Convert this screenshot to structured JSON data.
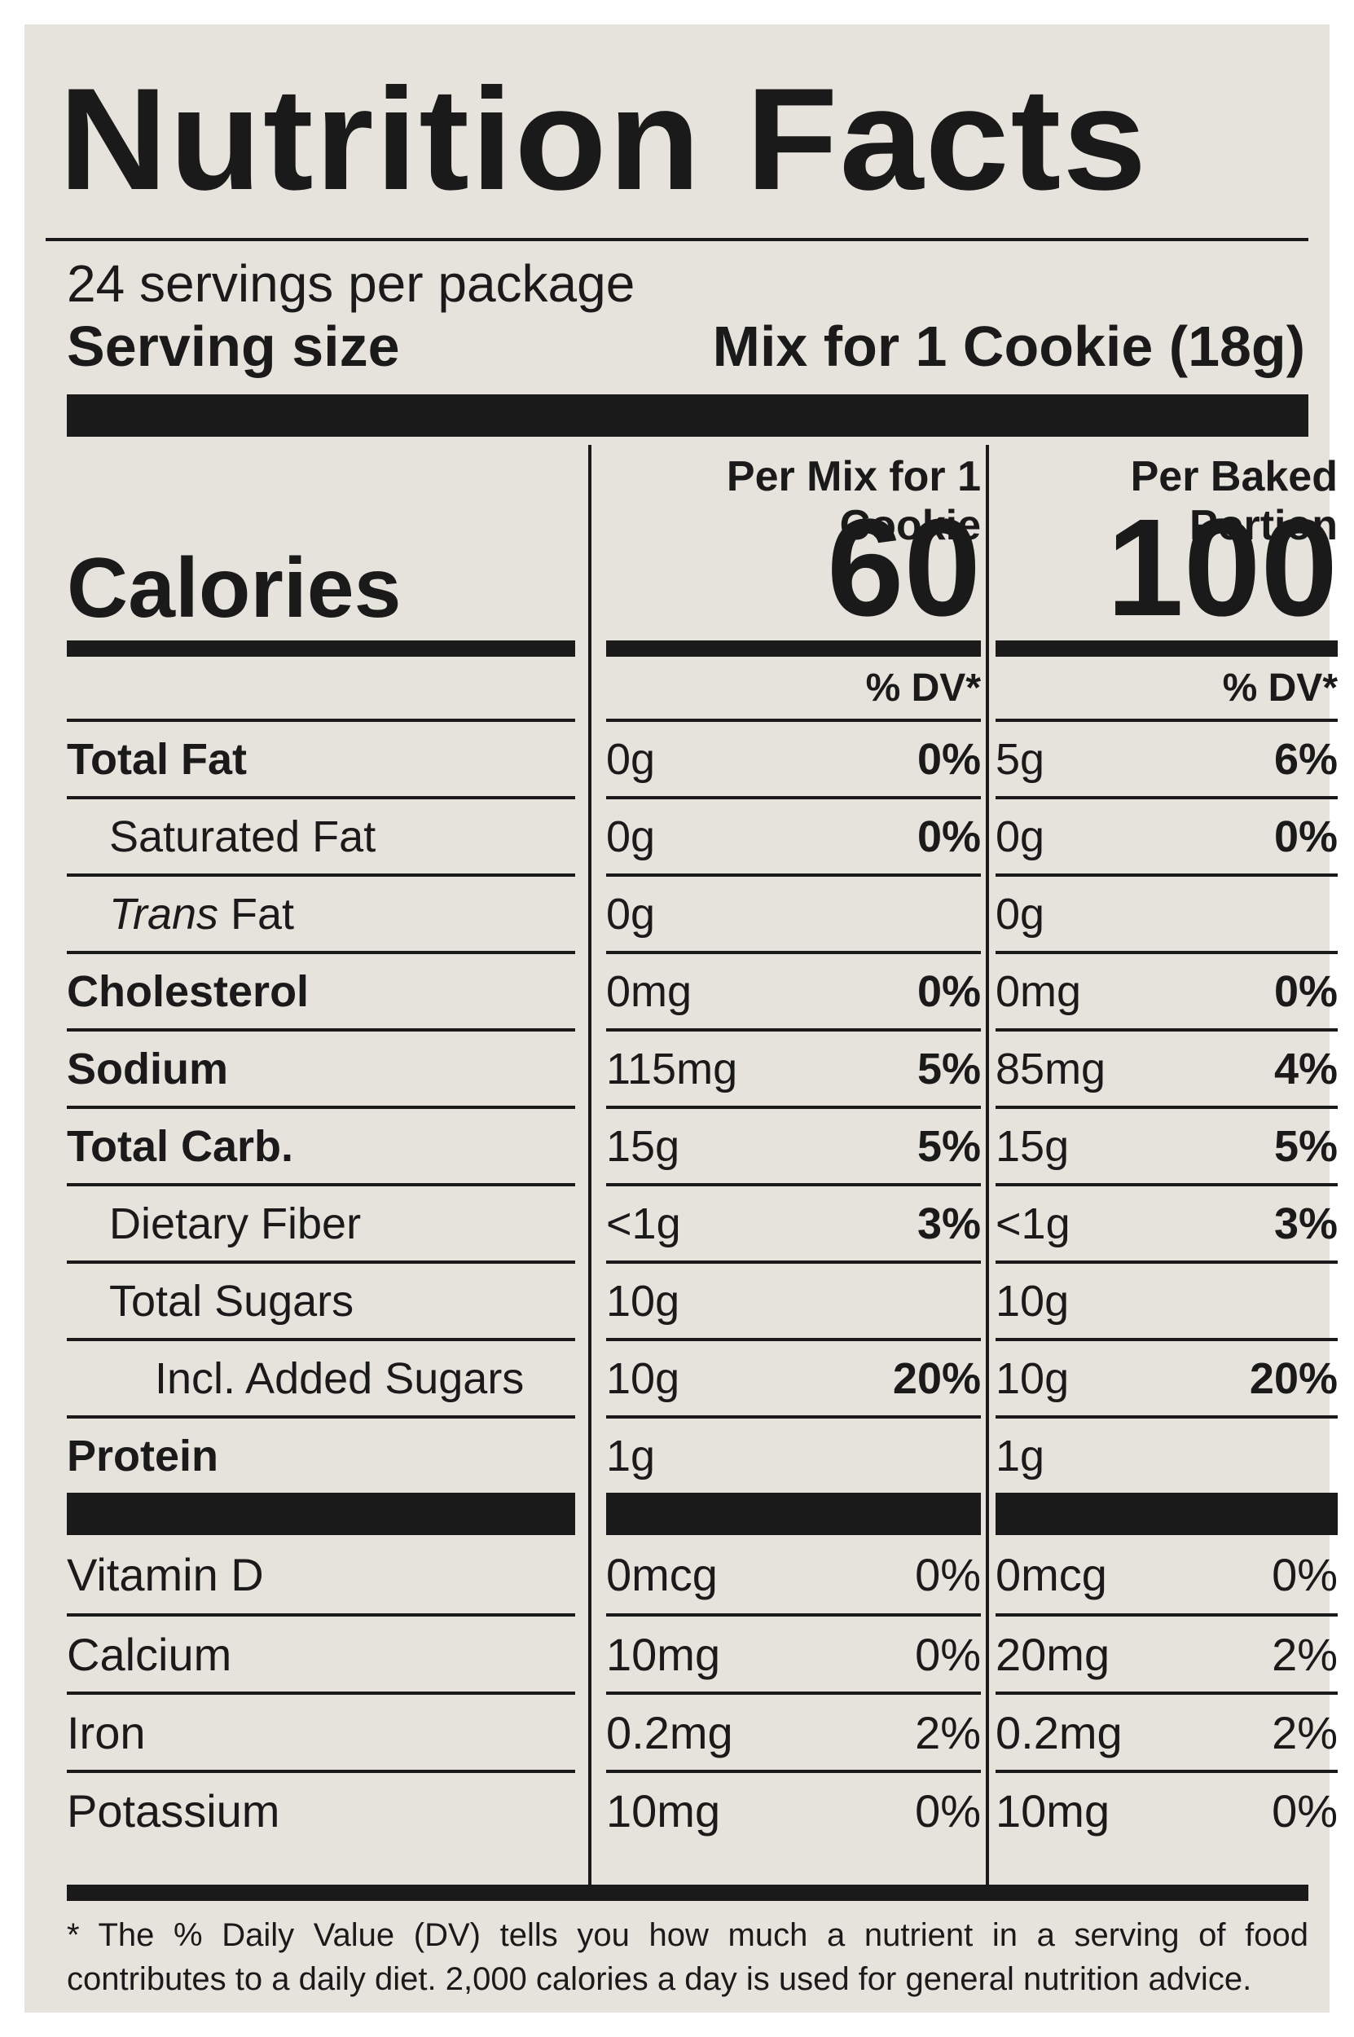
{
  "title": "Nutrition Facts",
  "servings": "24 servings per package",
  "serving_size_label": "Serving size",
  "serving_size_value": "Mix for 1 Cookie (18g)",
  "calories_label": "Calories",
  "columns": [
    {
      "header_line1": "Per Mix for 1",
      "header_line2": "Cookie",
      "calories": "60",
      "dv_label": "% DV*"
    },
    {
      "header_line1": "Per Baked",
      "header_line2": "Portion",
      "calories": "100",
      "dv_label": "% DV*"
    }
  ],
  "nutrients": [
    {
      "name": "Total Fat",
      "mix_amt": "0g",
      "mix_dv": "0%",
      "baked_amt": "5g",
      "baked_dv": "6%"
    },
    {
      "name": "Saturated Fat",
      "mix_amt": "0g",
      "mix_dv": "0%",
      "baked_amt": "0g",
      "baked_dv": "0%"
    },
    {
      "name_italic": "Trans",
      "name_rest": " Fat",
      "mix_amt": "0g",
      "mix_dv": "",
      "baked_amt": "0g",
      "baked_dv": ""
    },
    {
      "name": "Cholesterol",
      "mix_amt": "0mg",
      "mix_dv": "0%",
      "baked_amt": "0mg",
      "baked_dv": "0%"
    },
    {
      "name": "Sodium",
      "mix_amt": "115mg",
      "mix_dv": "5%",
      "baked_amt": "85mg",
      "baked_dv": "4%"
    },
    {
      "name": "Total Carb.",
      "mix_amt": "15g",
      "mix_dv": "5%",
      "baked_amt": "15g",
      "baked_dv": "5%"
    },
    {
      "name": "Dietary Fiber",
      "mix_amt": "<1g",
      "mix_dv": "3%",
      "baked_amt": "<1g",
      "baked_dv": "3%"
    },
    {
      "name": "Total Sugars",
      "mix_amt": "10g",
      "mix_dv": "",
      "baked_amt": "10g",
      "baked_dv": ""
    },
    {
      "name": "Incl. Added Sugars",
      "mix_amt": "10g",
      "mix_dv": "20%",
      "baked_amt": "10g",
      "baked_dv": "20%"
    },
    {
      "name": "Protein",
      "mix_amt": "1g",
      "mix_dv": "",
      "baked_amt": "1g",
      "baked_dv": ""
    }
  ],
  "vitamins": [
    {
      "name": "Vitamin D",
      "mix_amt": "0mcg",
      "mix_dv": "0%",
      "baked_amt": "0mcg",
      "baked_dv": "0%"
    },
    {
      "name": "Calcium",
      "mix_amt": "10mg",
      "mix_dv": "0%",
      "baked_amt": "20mg",
      "baked_dv": "2%"
    },
    {
      "name": "Iron",
      "mix_amt": "0.2mg",
      "mix_dv": "2%",
      "baked_amt": "0.2mg",
      "baked_dv": "2%"
    },
    {
      "name": "Potassium",
      "mix_amt": "10mg",
      "mix_dv": "0%",
      "baked_amt": "10mg",
      "baked_dv": "0%"
    }
  ],
  "footnote": "* The % Daily Value (DV) tells you how much a nutrient in a serving of food contributes to a daily diet. 2,000 calories a day is used for general nutrition advice.",
  "colors": {
    "ink": "#1a1a1a",
    "panel": "#e6e3dd"
  }
}
